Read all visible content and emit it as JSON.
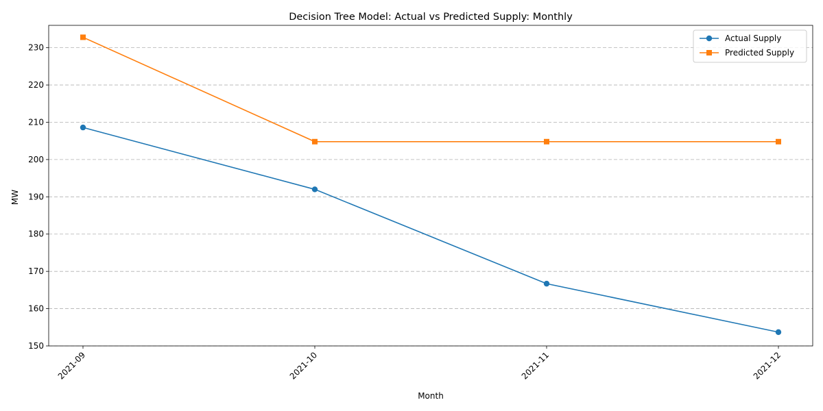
{
  "chart_data": {
    "type": "line",
    "title": "Decision Tree Model: Actual vs Predicted Supply: Monthly",
    "xlabel": "Month",
    "ylabel": "MW",
    "categories": [
      "2021-09",
      "2021-10",
      "2021-11",
      "2021-12"
    ],
    "ylim": [
      150,
      236
    ],
    "yticks": [
      150,
      160,
      170,
      180,
      190,
      200,
      210,
      220,
      230
    ],
    "grid": "y-dashed",
    "legend_position": "top-right",
    "series": [
      {
        "name": "Actual Supply",
        "marker": "circle",
        "color": "#1f77b4",
        "values": [
          208.6,
          192.0,
          166.7,
          153.7
        ]
      },
      {
        "name": "Predicted Supply",
        "marker": "square",
        "color": "#ff7f0e",
        "values": [
          232.8,
          204.8,
          204.8,
          204.8
        ]
      }
    ]
  }
}
